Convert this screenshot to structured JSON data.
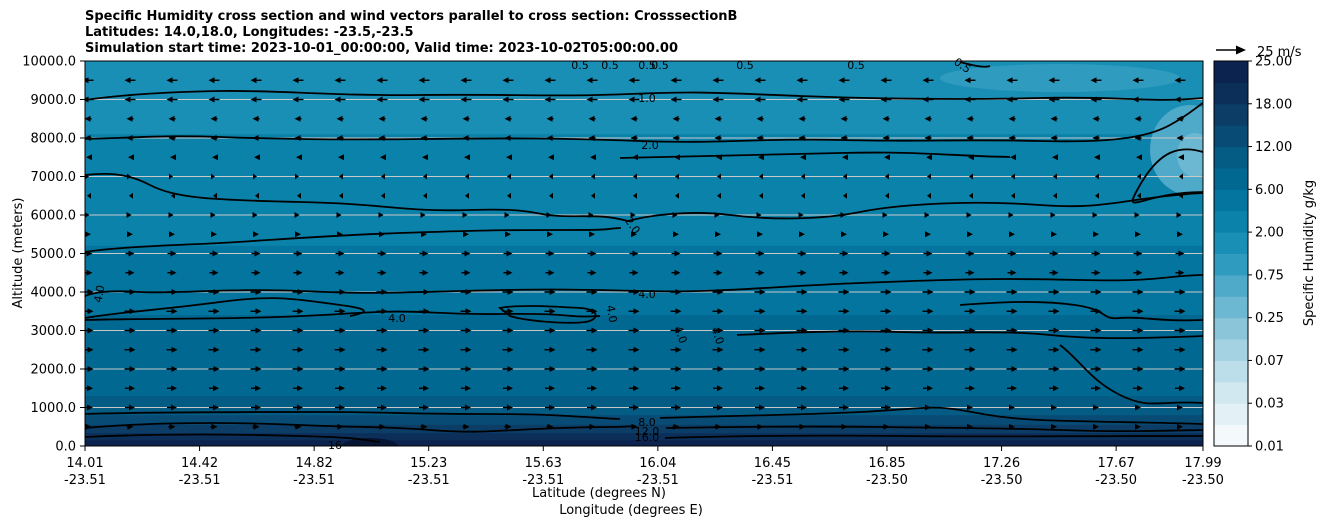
{
  "chart_data": {
    "type": "contourf",
    "title_lines": [
      "Specific Humidity cross section and wind vectors parallel to cross section: CrosssectionB",
      "Latitudes: 14.0,18.0, Longitudes: -23.5,-23.5",
      "Simulation start time: 2023-10-01_00:00:00, Valid time: 2023-10-02T05:00:00.00"
    ],
    "xlabel_lat": "Latitude (degrees N)",
    "xlabel_lon": "Longitude (degrees E)",
    "ylabel": "Altitude (meters)",
    "x_ticks": [
      {
        "lat": "14.01",
        "lon": "-23.51"
      },
      {
        "lat": "14.42",
        "lon": "-23.51"
      },
      {
        "lat": "14.82",
        "lon": "-23.51"
      },
      {
        "lat": "15.23",
        "lon": "-23.51"
      },
      {
        "lat": "15.63",
        "lon": "-23.51"
      },
      {
        "lat": "16.04",
        "lon": "-23.51"
      },
      {
        "lat": "16.45",
        "lon": "-23.51"
      },
      {
        "lat": "16.85",
        "lon": "-23.50"
      },
      {
        "lat": "17.26",
        "lon": "-23.50"
      },
      {
        "lat": "17.67",
        "lon": "-23.50"
      },
      {
        "lat": "17.99",
        "lon": "-23.50"
      }
    ],
    "y_ticks": [
      "0.0",
      "1000.0",
      "2000.0",
      "3000.0",
      "4000.0",
      "5000.0",
      "6000.0",
      "7000.0",
      "8000.0",
      "9000.0",
      "10000.0"
    ],
    "ylim": [
      0,
      10000
    ],
    "colorbar": {
      "label": "Specific Humidity g/kg",
      "tick_labels": [
        "0.01",
        "0.03",
        "0.07",
        "0.25",
        "0.75",
        "2.00",
        "6.00",
        "12.00",
        "18.00",
        "25.00"
      ],
      "levels": [
        0.01,
        0.02,
        0.03,
        0.05,
        0.07,
        0.1,
        0.25,
        0.5,
        0.75,
        1.0,
        2.0,
        4.0,
        6.0,
        8.0,
        12.0,
        16.0,
        18.0,
        22.0,
        25.0
      ],
      "colors": [
        "#f4fafc",
        "#e3f1f6",
        "#d1e8f0",
        "#bcdeea",
        "#a4d2e2",
        "#8ac5da",
        "#6cb7d1",
        "#4fa9c8",
        "#2f9bbe",
        "#1a8fb5",
        "#0b82aa",
        "#03759e",
        "#006891",
        "#045b84",
        "#084c75",
        "#0b3d66",
        "#0c2f5a",
        "#0b234e"
      ]
    },
    "quiver_key": {
      "label": "25 m/s",
      "speed": 25
    },
    "grid": "horizontal",
    "contour_labels": [
      {
        "text": "0.5"
      },
      {
        "text": "0.5"
      },
      {
        "text": "0.5"
      },
      {
        "text": "0.5"
      },
      {
        "text": "0.5"
      },
      {
        "text": "0.5"
      },
      {
        "text": "0.5"
      },
      {
        "text": "1.0"
      },
      {
        "text": "2.0"
      },
      {
        "text": "2.0"
      },
      {
        "text": "4.0"
      },
      {
        "text": "4.0"
      },
      {
        "text": "4.0"
      },
      {
        "text": "4.0"
      },
      {
        "text": "4.0"
      },
      {
        "text": "4.0"
      },
      {
        "text": "8.0"
      },
      {
        "text": "12.0"
      },
      {
        "text": "16.0"
      },
      {
        "text": "16"
      }
    ]
  }
}
